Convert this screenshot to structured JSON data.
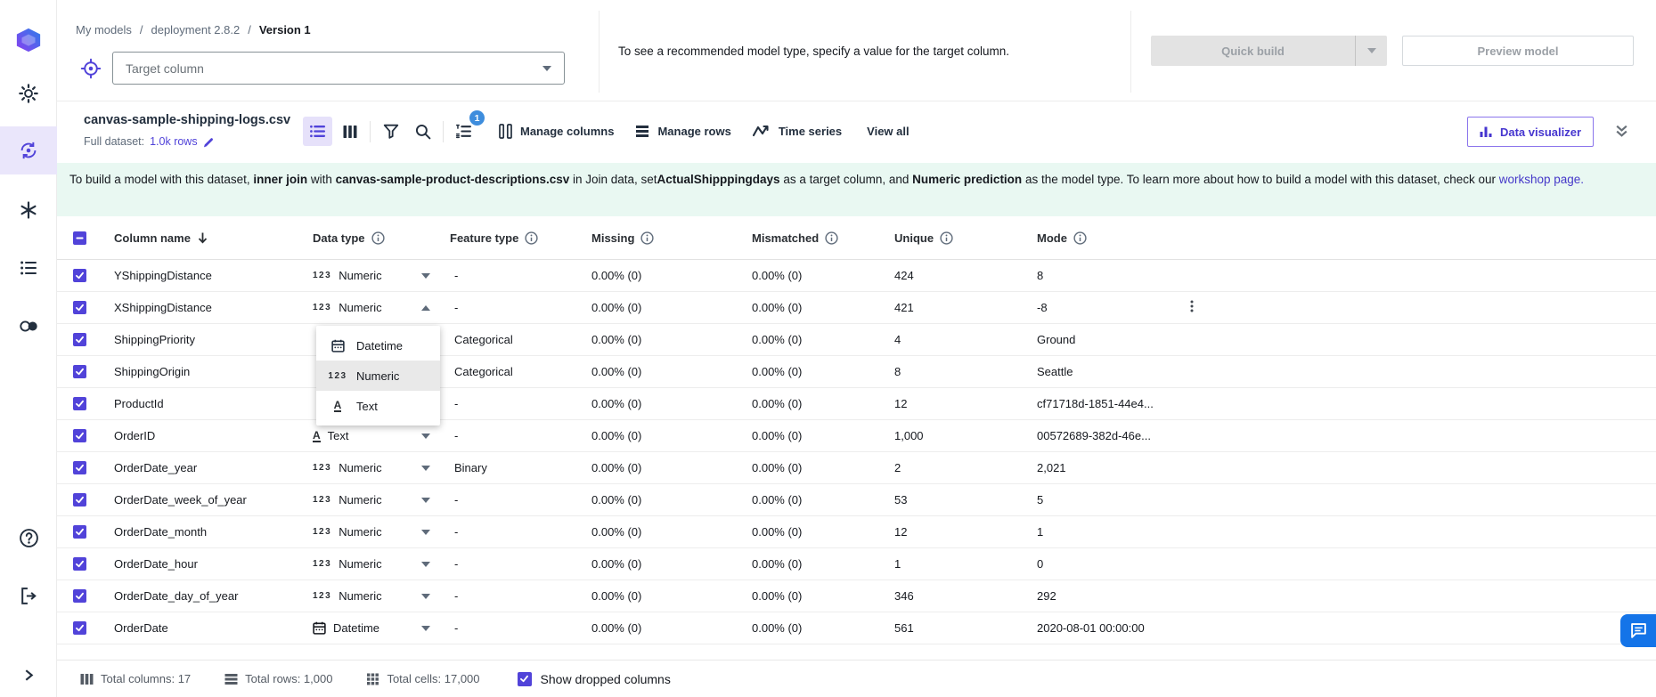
{
  "colors": {
    "accent": "#5143d9",
    "badge_blue": "#3e8ddd",
    "banner_bg": "#e9f8f2",
    "link": "#4538c9",
    "selected_nav_bg": "#eae6fb",
    "chat_fab": "#1474e8"
  },
  "sidebar": {
    "items": [
      {
        "icon": "sagemaker-canvas-logo"
      },
      {
        "icon": "gear-icon"
      },
      {
        "icon": "models-cycle-icon",
        "selected": true
      },
      {
        "icon": "asterisk-icon"
      },
      {
        "icon": "list-icon"
      },
      {
        "icon": "circles-icon"
      },
      {
        "icon": "help-icon"
      },
      {
        "icon": "logout-icon"
      }
    ],
    "expand_icon": "chevron-right-icon"
  },
  "header": {
    "breadcrumb": [
      "My models",
      "deployment 2.8.2",
      "Version 1"
    ],
    "target_placeholder": "Target column",
    "hint": "To see a recommended model type, specify a value for the target column.",
    "quick_build_label": "Quick build",
    "preview_model_label": "Preview model"
  },
  "toolbar": {
    "dataset_name": "canvas-sample-shipping-logs.csv",
    "full_dataset_label": "Full dataset:",
    "rows_link": "1.0k rows",
    "sort_badge": "1",
    "manage_columns_label": "Manage columns",
    "manage_rows_label": "Manage rows",
    "time_series_label": "Time series",
    "view_all_label": "View all",
    "data_visualizer_label": "Data visualizer"
  },
  "banner": {
    "segments": [
      {
        "text": "To build a model with this dataset, "
      },
      {
        "text": "inner join",
        "bold": true
      },
      {
        "text": " with "
      },
      {
        "text": "canvas-sample-product-descriptions.csv",
        "bold": true
      },
      {
        "text": " in Join data, set"
      },
      {
        "text": "ActualShipppingdays",
        "bold": true
      },
      {
        "text": " as a target column, and "
      },
      {
        "text": "Numeric prediction",
        "bold": true
      },
      {
        "text": " as the model type. To learn more about how to build a model with this dataset, check our "
      },
      {
        "text": "workshop page.",
        "link": true
      }
    ]
  },
  "table": {
    "headers": [
      {
        "checkbox": true
      },
      {
        "label": "Column name",
        "sort": true
      },
      {
        "label": "Data type",
        "info": true
      },
      {
        "label": "Feature type",
        "info": true
      },
      {
        "label": "Missing",
        "info": true
      },
      {
        "label": "Mismatched",
        "info": true
      },
      {
        "label": "Unique",
        "info": true
      },
      {
        "label": "Mode",
        "info": true
      }
    ],
    "rows": [
      {
        "name": "YShippingDistance",
        "type": {
          "icon": "numeric-icon",
          "label": "Numeric",
          "caret": "down"
        },
        "feature": "-",
        "missing": "0.00% (0)",
        "mismatched": "0.00% (0)",
        "unique": "424",
        "mode": "8",
        "checked": true
      },
      {
        "name": "XShippingDistance",
        "type": {
          "icon": "numeric-icon",
          "label": "Numeric",
          "caret": "up"
        },
        "feature": "-",
        "missing": "0.00% (0)",
        "mismatched": "0.00% (0)",
        "unique": "421",
        "mode": "-8",
        "checked": true,
        "menu": true
      },
      {
        "name": "ShippingPriority",
        "type": null,
        "feature": "Categorical",
        "missing": "0.00% (0)",
        "mismatched": "0.00% (0)",
        "unique": "4",
        "mode": "Ground",
        "checked": true
      },
      {
        "name": "ShippingOrigin",
        "type": null,
        "feature": "Categorical",
        "missing": "0.00% (0)",
        "mismatched": "0.00% (0)",
        "unique": "8",
        "mode": "Seattle",
        "checked": true
      },
      {
        "name": "ProductId",
        "type": null,
        "feature": "-",
        "missing": "0.00% (0)",
        "mismatched": "0.00% (0)",
        "unique": "12",
        "mode": "cf71718d-1851-44e4...",
        "checked": true
      },
      {
        "name": "OrderID",
        "type": {
          "icon": "text-icon",
          "label": "Text",
          "caret": "down"
        },
        "feature": "-",
        "missing": "0.00% (0)",
        "mismatched": "0.00% (0)",
        "unique": "1,000",
        "mode": "00572689-382d-46e...",
        "checked": true
      },
      {
        "name": "OrderDate_year",
        "type": {
          "icon": "numeric-icon",
          "label": "Numeric",
          "caret": "down"
        },
        "feature": "Binary",
        "missing": "0.00% (0)",
        "mismatched": "0.00% (0)",
        "unique": "2",
        "mode": "2,021",
        "checked": true
      },
      {
        "name": "OrderDate_week_of_year",
        "type": {
          "icon": "numeric-icon",
          "label": "Numeric",
          "caret": "down"
        },
        "feature": "-",
        "missing": "0.00% (0)",
        "mismatched": "0.00% (0)",
        "unique": "53",
        "mode": "5",
        "checked": true
      },
      {
        "name": "OrderDate_month",
        "type": {
          "icon": "numeric-icon",
          "label": "Numeric",
          "caret": "down"
        },
        "feature": "-",
        "missing": "0.00% (0)",
        "mismatched": "0.00% (0)",
        "unique": "12",
        "mode": "1",
        "checked": true
      },
      {
        "name": "OrderDate_hour",
        "type": {
          "icon": "numeric-icon",
          "label": "Numeric",
          "caret": "down"
        },
        "feature": "-",
        "missing": "0.00% (0)",
        "mismatched": "0.00% (0)",
        "unique": "1",
        "mode": "0",
        "checked": true
      },
      {
        "name": "OrderDate_day_of_year",
        "type": {
          "icon": "numeric-icon",
          "label": "Numeric",
          "caret": "down"
        },
        "feature": "-",
        "missing": "0.00% (0)",
        "mismatched": "0.00% (0)",
        "unique": "346",
        "mode": "292",
        "checked": true
      },
      {
        "name": "OrderDate",
        "type": {
          "icon": "datetime-icon",
          "label": "Datetime",
          "caret": "down"
        },
        "feature": "-",
        "missing": "0.00% (0)",
        "mismatched": "0.00% (0)",
        "unique": "561",
        "mode": "2020-08-01 00:00:00",
        "checked": true
      }
    ]
  },
  "dropdown": {
    "items": [
      {
        "icon": "datetime-icon",
        "label": "Datetime"
      },
      {
        "icon": "numeric-icon",
        "label": "Numeric",
        "highlighted": true
      },
      {
        "icon": "text-icon",
        "label": "Text"
      }
    ]
  },
  "footer": {
    "stats": [
      {
        "icon": "columns-grid-icon",
        "label": "Total columns: 17"
      },
      {
        "icon": "rows-stack-icon",
        "label": "Total rows: 1,000"
      },
      {
        "icon": "cells-grid-icon",
        "label": "Total cells: 17,000"
      }
    ],
    "show_dropped_label": "Show dropped columns",
    "show_dropped_checked": true
  }
}
